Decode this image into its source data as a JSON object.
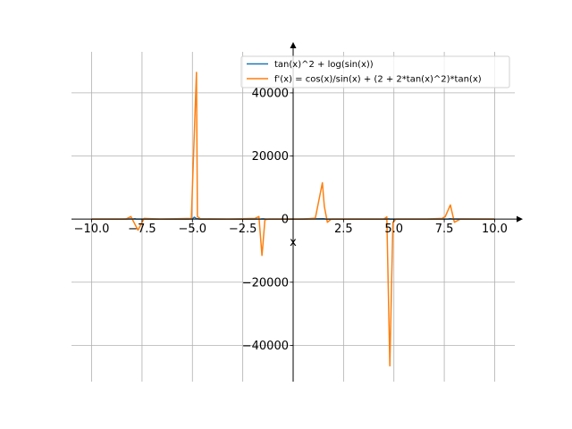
{
  "chart_data": {
    "type": "line",
    "xlabel": "x",
    "ylabel": "",
    "xlim": [
      -11,
      11
    ],
    "ylim": [
      -51500,
      53000
    ],
    "x_ticks": [
      -10,
      -7.5,
      -5,
      -2.5,
      0,
      2.5,
      5,
      7.5,
      10
    ],
    "x_tick_labels": [
      "−10.0",
      "−7.5",
      "−5.0",
      "−2.5",
      "0",
      "2.5",
      "5.0",
      "7.5",
      "10.0"
    ],
    "y_ticks": [
      -40000,
      -20000,
      0,
      20000,
      40000
    ],
    "y_tick_labels": [
      "−40000",
      "−20000",
      "0",
      "20000",
      "40000"
    ],
    "grid": true,
    "legend_position": "top-right",
    "colors": {
      "series0": "#1f77b4",
      "series1": "#ff7f0e",
      "grid": "#b0b0b0"
    },
    "series": [
      {
        "name": "tan(x)^2 + log(sin(x))",
        "x": [
          -10,
          -8.5,
          -7.9,
          -7.85,
          -7.8,
          -6.5,
          -5.2,
          -5.0,
          -4.9,
          -4.8,
          -4.6,
          -3.5,
          -2.0,
          -1.6,
          -1.5,
          -1.4,
          0.2,
          1.5,
          1.6,
          2.0,
          4.6,
          4.75,
          4.8,
          6.0,
          7.7,
          7.8,
          7.9,
          10
        ],
        "y": [
          0,
          0,
          60,
          100,
          50,
          0,
          0,
          60,
          600,
          150,
          20,
          0,
          0,
          40,
          80,
          30,
          0,
          100,
          40,
          0,
          0,
          60,
          20,
          0,
          50,
          90,
          30,
          0
        ]
      },
      {
        "name": "f'(x) = cos(x)/sin(x) + (2 + 2*tan(x)^2)*tan(x)",
        "x": [
          -10,
          -8.3,
          -8.05,
          -7.7,
          -7.4,
          -6.6,
          -5.05,
          -4.8,
          -4.75,
          -4.6,
          -3.2,
          -1.9,
          -1.7,
          -1.55,
          -1.5,
          -1.4,
          -1.2,
          0.5,
          1.1,
          1.45,
          1.55,
          1.7,
          1.9,
          3.0,
          4.5,
          4.65,
          4.8,
          4.95,
          5.1,
          6.6,
          7.4,
          7.55,
          7.8,
          8.0,
          8.3,
          10
        ],
        "y": [
          0,
          0,
          800,
          -3500,
          200,
          0,
          200,
          46500,
          800,
          100,
          0,
          200,
          800,
          -11500,
          -8000,
          -200,
          0,
          0,
          300,
          11500,
          4000,
          -1000,
          0,
          0,
          0,
          700,
          -46500,
          -1000,
          0,
          0,
          200,
          800,
          4500,
          -1000,
          0,
          0
        ]
      }
    ]
  }
}
